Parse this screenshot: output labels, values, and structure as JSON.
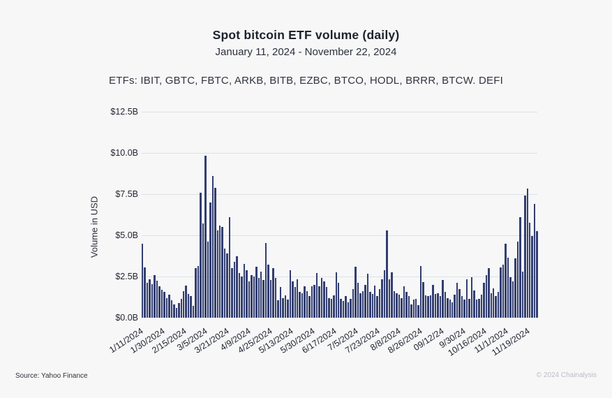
{
  "header": {
    "title": "Spot bitcoin ETF volume (daily)",
    "subtitle": "January 11, 2024 - November 22, 2024",
    "etfs_line": "ETFs: IBIT, GBTC,  FBTC, ARKB, BITB, EZBC, BTCO, HODL, BRRR, BTCW. DEFI"
  },
  "footer": {
    "source": "Source: Yahoo Finance",
    "copyright": "© 2024 Chainalysis"
  },
  "colors": {
    "background": "#f7f7f8",
    "bar": "#323e70",
    "gridline": "#dfe1e5",
    "title_text": "#1e222c",
    "axis_text": "#23272f",
    "copyright_text": "#b9bdc3"
  },
  "chart_data": {
    "type": "bar",
    "title": "Spot bitcoin ETF volume (daily)",
    "subtitle": "January 11, 2024 - November 22, 2024",
    "xlabel": "",
    "ylabel": "Volume in USD",
    "unit": "billions of USD",
    "ylim": [
      0,
      12.5
    ],
    "grid": "horizontal",
    "legend": "none",
    "y_ticks": [
      {
        "label": "$12.5B",
        "value": 12.5
      },
      {
        "label": "$10.0B",
        "value": 10.0
      },
      {
        "label": "$7.5B",
        "value": 7.5
      },
      {
        "label": "$5.0B",
        "value": 5.0
      },
      {
        "label": "$2.5B",
        "value": 2.5
      },
      {
        "label": "$0.0B",
        "value": 0.0
      }
    ],
    "x_tick_labels": [
      "1/11/2024",
      "1/30/2024",
      "2/15/2024",
      "3/5/2024",
      "3/21/2024",
      "4/9/2024",
      "4/25/2024",
      "5/13/2024",
      "5/30/2024",
      "6/17/2024",
      "7/5/2024",
      "7/23/2024",
      "8/8/2024",
      "8/26/2024",
      "09/12/24",
      "9/30/24",
      "10/16/2024",
      "11/1/2024",
      "11/19/2024"
    ],
    "values_description": "Daily total spot bitcoin ETF volume in $B, Jan 11 2024 - Nov 22 2024 (estimated from bars, left to right)",
    "values": [
      4.5,
      3.05,
      2.1,
      2.35,
      2.05,
      2.6,
      2.25,
      1.9,
      1.7,
      1.55,
      1.2,
      1.4,
      1.05,
      0.8,
      0.6,
      0.9,
      1.15,
      1.6,
      1.95,
      1.45,
      1.3,
      0.7,
      3.0,
      3.15,
      7.6,
      5.7,
      9.85,
      4.6,
      7.0,
      8.6,
      7.9,
      5.3,
      5.6,
      5.5,
      4.2,
      3.9,
      6.1,
      3.0,
      3.4,
      3.75,
      2.7,
      2.5,
      3.25,
      2.9,
      2.2,
      2.6,
      2.5,
      3.1,
      2.4,
      2.8,
      2.3,
      4.55,
      3.2,
      2.3,
      3.0,
      2.4,
      1.05,
      1.85,
      1.2,
      1.35,
      1.1,
      2.9,
      2.2,
      1.85,
      2.35,
      1.55,
      1.5,
      1.9,
      1.6,
      1.3,
      1.9,
      2.0,
      2.7,
      1.9,
      2.4,
      2.2,
      1.85,
      1.2,
      1.15,
      1.35,
      2.75,
      2.1,
      1.15,
      1.0,
      1.3,
      0.95,
      1.15,
      1.75,
      3.1,
      2.1,
      1.5,
      1.6,
      2.0,
      2.65,
      1.55,
      1.45,
      1.95,
      1.3,
      1.75,
      2.35,
      2.9,
      5.3,
      2.35,
      2.75,
      1.6,
      1.5,
      1.4,
      1.2,
      1.9,
      1.55,
      1.3,
      0.8,
      1.1,
      1.15,
      0.75,
      3.15,
      2.15,
      1.35,
      1.3,
      1.35,
      2.0,
      1.45,
      1.5,
      1.3,
      2.3,
      1.55,
      1.2,
      1.1,
      0.95,
      1.4,
      2.1,
      1.75,
      1.3,
      1.1,
      2.35,
      1.15,
      2.45,
      1.65,
      1.1,
      1.15,
      1.4,
      2.1,
      2.6,
      3.0,
      1.5,
      1.8,
      1.3,
      1.55,
      3.05,
      3.2,
      4.5,
      3.65,
      2.45,
      2.2,
      3.6,
      4.6,
      6.1,
      2.8,
      7.4,
      7.85,
      5.75,
      4.95,
      6.9,
      5.25
    ],
    "notable_values": {
      "first_day_jan_11": 4.5,
      "peak_march_5": 9.85,
      "august_spike": 5.3,
      "november_peak": 7.85,
      "last_day_nov_22": 5.25
    }
  }
}
